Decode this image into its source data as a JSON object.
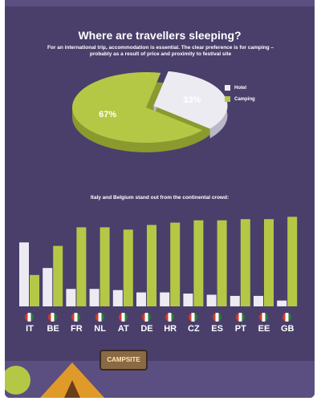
{
  "pie_title": "Where are travellers sleeping?",
  "pie_subtitle": "For an international trip, accommodation is essential. The clear preference is for camping – probably as a result of price and proximity to festival site",
  "bar_subtitle": "Italy and Belgium stand out from the continental crowd:",
  "sign_text": "CAMPSITE",
  "colors": {
    "hotel": "#ecebf2",
    "camping": "#b5c846",
    "background": "#4a3f6b"
  },
  "chart_data": [
    {
      "type": "pie",
      "title": "Where are travellers sleeping?",
      "slices": [
        {
          "label": "Hotel",
          "value": 33,
          "display": "33%"
        },
        {
          "label": "Camping",
          "value": 67,
          "display": "67%"
        }
      ],
      "legend_position": "right"
    },
    {
      "type": "bar",
      "categories": [
        "IT",
        "BE",
        "FR",
        "NL",
        "AT",
        "DE",
        "HR",
        "CZ",
        "ES",
        "PT",
        "EE",
        "GB"
      ],
      "series": [
        {
          "name": "Hotel",
          "values": [
            55,
            33,
            15,
            15,
            14,
            12,
            12,
            11,
            10,
            9,
            9,
            5
          ]
        },
        {
          "name": "Camping",
          "values": [
            27,
            52,
            68,
            68,
            66,
            70,
            72,
            74,
            74,
            75,
            75,
            77
          ]
        }
      ],
      "ylim": [
        0,
        80
      ],
      "grid": false
    }
  ]
}
